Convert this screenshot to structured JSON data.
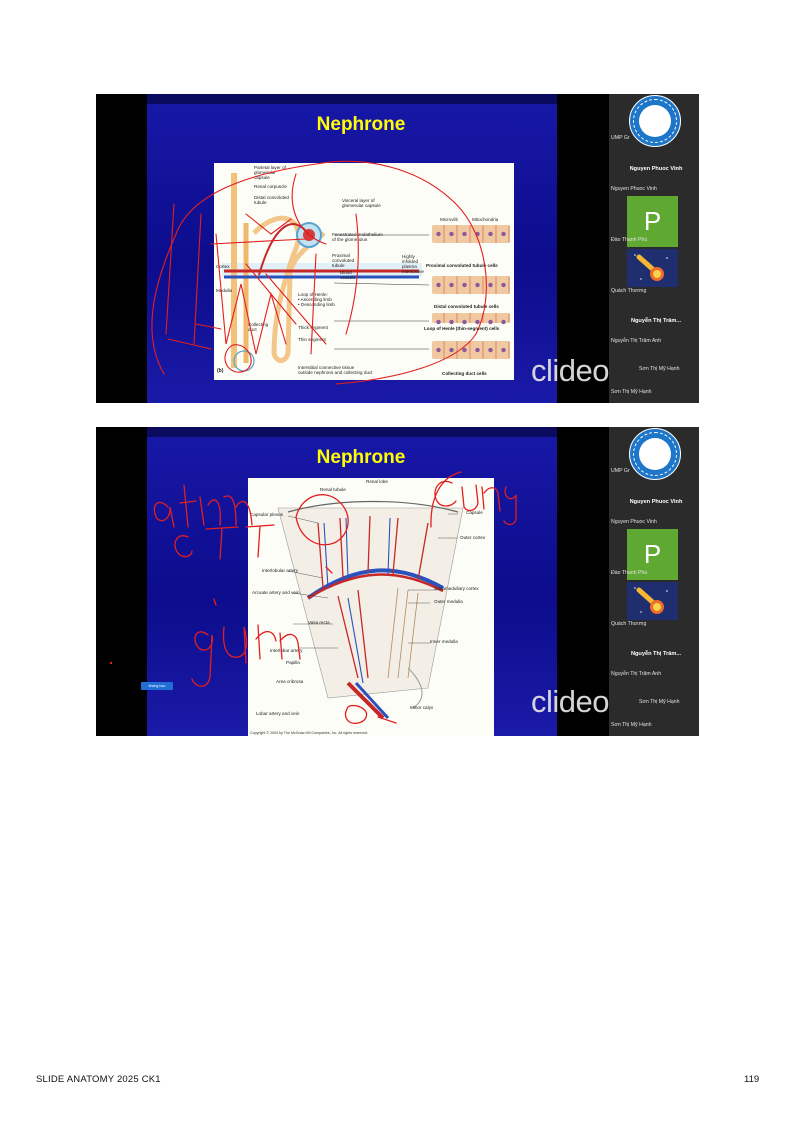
{
  "colors": {
    "slide_title": "#ffff00",
    "ink": "#e21f1f",
    "slide_blue": "#1010a0",
    "sidebar": "#2b2b2b"
  },
  "shots": [
    {
      "slide_title": "Nephrone",
      "figure_panel_label": "(b)",
      "figure_labels": [
        "Parietal layer of",
        "glomerular",
        "capsule",
        "Renal corpuscle",
        "Distal convoluted",
        "tubule",
        "Visceral layer of",
        "glomerular capsule",
        "Fenestrated endothelium",
        "of the glomerulus",
        "Proximal",
        "convoluted",
        "tubule",
        "Blood",
        "vessels",
        "Cortex",
        "Medulla",
        "Loop of Henle:",
        "• Ascending limb",
        "• Descending limb",
        "Collecting",
        "duct",
        "Thick segment",
        "Thin segment",
        "Interstitial connective tissue",
        "outside nephrons and collecting duct",
        "Microvilli",
        "Mitochondria",
        "Highly",
        "infolded",
        "plasma",
        "membrane",
        "Proximal convoluted tubule cells",
        "Distal convoluted tubule cells",
        "Loop of Henle (thin-segment) cells",
        "Collecting duct cells"
      ],
      "watermark": "clideo.com",
      "sidebar": {
        "logo_alt": "school-logo",
        "line1": "UMP Gr",
        "name_bold_1": "Nguyen Phuoc Vinh",
        "name_small_1": "Nguyen Phuoc Vinh",
        "avatar_letter": "P",
        "name_small_2": "Đào Thanh Phú",
        "name_small_3": "Quách Thương",
        "name_bold_2": "Nguyễn Thị Trâm...",
        "name_small_4": "Nguyễn Thị Trâm Anh",
        "name_small_5": "Sơn Thị Mỹ Hạnh",
        "name_small_6": "Sơn Thị Mỹ Hạnh"
      }
    },
    {
      "slide_title": "Nephrone",
      "figure_labels": [
        "Renal lobe",
        "Renal tubule",
        "Capsular plexus",
        "Capsule",
        "Outer cortex",
        "Interlobular artery",
        "Juxtamedullary cortex",
        "Arcuate artery and vein",
        "Outer medulla",
        "Vasa recta",
        "Interlobar artery",
        "Inner medulla",
        "Papilla",
        "Area cribrosa",
        "Lobar artery and vein",
        "Minor calyx"
      ],
      "copyright": "Copyright © 2004 by The McGraw-Hill Companies, Inc. All rights reserved.",
      "chip_label": "khang hạo",
      "watermark": "clideo.com",
      "sidebar": {
        "logo_alt": "school-logo",
        "line1": "UMP Gr",
        "name_bold_1": "Nguyen Phuoc Vinh",
        "name_small_1": "Nguyen Phuoc Vinh",
        "avatar_letter": "P",
        "name_small_2": "Đào Thanh Phú",
        "name_small_3": "Quách Thương",
        "name_bold_2": "Nguyễn Thị Trâm...",
        "name_small_4": "Nguyễn Thị Trâm Anh",
        "name_small_5": "Sơn Thị Mỹ Hạnh",
        "name_small_6": "Sơn Thị Mỹ Hạnh"
      }
    }
  ],
  "footer": {
    "left": "SLIDE ANATOMY 2025 CK1",
    "page_number": "119"
  }
}
